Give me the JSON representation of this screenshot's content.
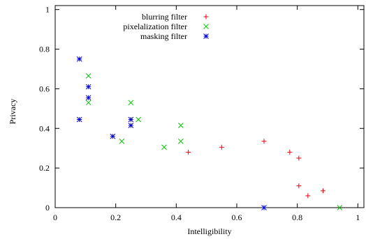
{
  "chart_data": {
    "type": "scatter",
    "title": "",
    "xlabel": "Intelligibility",
    "ylabel": "Privacy",
    "xlim": [
      0,
      1.02
    ],
    "ylim": [
      0,
      1.02
    ],
    "xticks": [
      0,
      0.2,
      0.4,
      0.6,
      0.8,
      1
    ],
    "xtick_labels": [
      "0",
      "0.2",
      "0.4",
      "0.6",
      "0.8",
      "1"
    ],
    "yticks": [
      0,
      0.2,
      0.4,
      0.6,
      0.8,
      1
    ],
    "ytick_labels": [
      "0",
      "0.2",
      "0.4",
      "0.6",
      "0.8",
      "1"
    ],
    "grid": false,
    "legend_position": "top-right",
    "series": [
      {
        "name": "blurring filter",
        "marker": "plus",
        "color": "#e8000b",
        "points": [
          {
            "x": 0.44,
            "y": 0.28
          },
          {
            "x": 0.55,
            "y": 0.305
          },
          {
            "x": 0.69,
            "y": 0.335
          },
          {
            "x": 0.775,
            "y": 0.28
          },
          {
            "x": 0.805,
            "y": 0.25
          },
          {
            "x": 0.805,
            "y": 0.11
          },
          {
            "x": 0.835,
            "y": 0.06
          },
          {
            "x": 0.885,
            "y": 0.085
          }
        ]
      },
      {
        "name": "pixelalization filter",
        "marker": "cross",
        "color": "#00c800",
        "points": [
          {
            "x": 0.11,
            "y": 0.665
          },
          {
            "x": 0.11,
            "y": 0.53
          },
          {
            "x": 0.22,
            "y": 0.335
          },
          {
            "x": 0.25,
            "y": 0.53
          },
          {
            "x": 0.275,
            "y": 0.445
          },
          {
            "x": 0.36,
            "y": 0.305
          },
          {
            "x": 0.415,
            "y": 0.335
          },
          {
            "x": 0.415,
            "y": 0.415
          },
          {
            "x": 0.94,
            "y": 0.0
          }
        ]
      },
      {
        "name": "masking filter",
        "marker": "star",
        "color": "#0000d8",
        "points": [
          {
            "x": 0.08,
            "y": 0.75
          },
          {
            "x": 0.08,
            "y": 0.445
          },
          {
            "x": 0.11,
            "y": 0.61
          },
          {
            "x": 0.11,
            "y": 0.555
          },
          {
            "x": 0.19,
            "y": 0.36
          },
          {
            "x": 0.25,
            "y": 0.445
          },
          {
            "x": 0.25,
            "y": 0.415
          },
          {
            "x": 0.69,
            "y": 0.0
          }
        ]
      }
    ]
  }
}
